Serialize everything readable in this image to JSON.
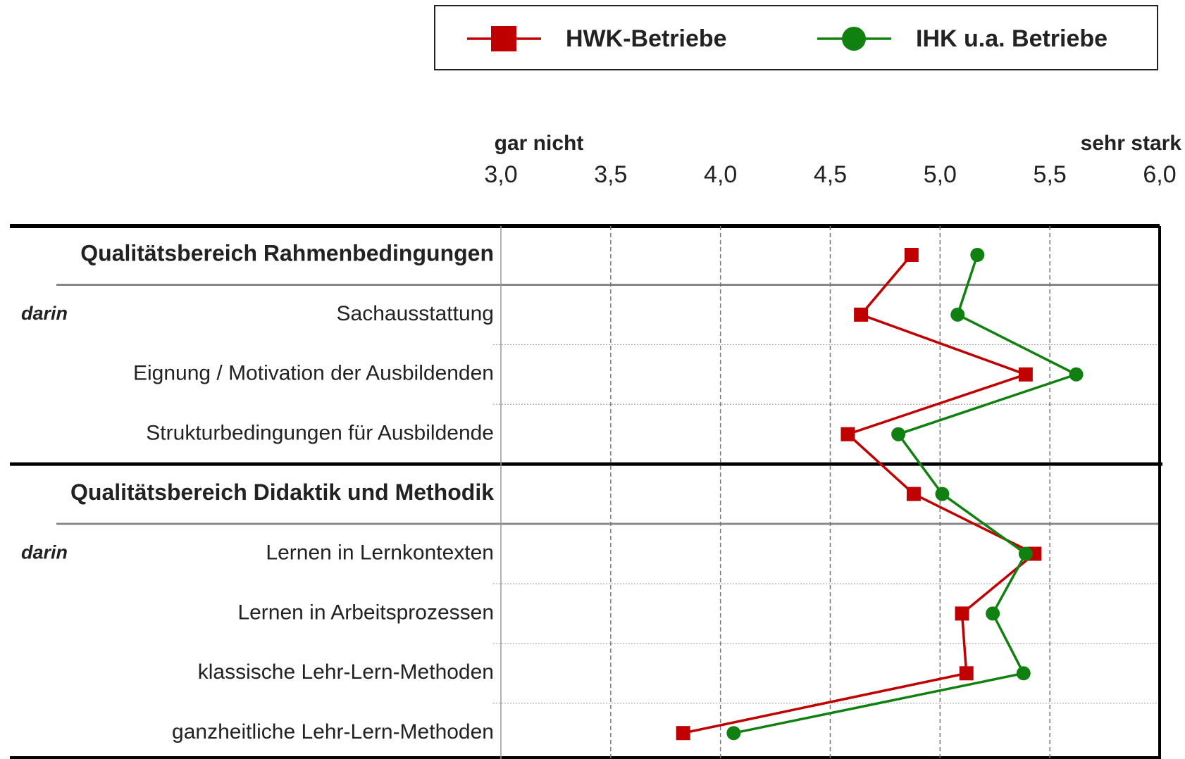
{
  "chart_data": {
    "type": "line",
    "orientation": "horizontal",
    "xlabel_left": "gar nicht",
    "xlabel_right": "sehr stark",
    "categories": [
      "Qualitätsbereich Rahmenbedingungen",
      "Sachausstattung",
      "Eignung / Motivation der Ausbildenden",
      "Strukturbedingungen für Ausbildende",
      "Qualitätsbereich Didaktik und Methodik",
      "Lernen in Lernkontexten",
      "Lernen in Arbeitsprozessen",
      "klassische Lehr-Lern-Methoden",
      "ganzheitliche Lehr-Lern-Methoden"
    ],
    "header_categories": [
      0,
      4
    ],
    "annotations": [
      {
        "text": "darin",
        "category": 1
      },
      {
        "text": "darin",
        "category": 5
      }
    ],
    "series": [
      {
        "name": "HWK-Betriebe",
        "color": "#c00000",
        "marker": "square",
        "values": [
          4.87,
          4.64,
          5.39,
          4.58,
          4.88,
          5.43,
          5.1,
          5.12,
          3.83
        ]
      },
      {
        "name": "IHK u.a. Betriebe",
        "color": "#108010",
        "marker": "circle",
        "values": [
          5.17,
          5.08,
          5.62,
          4.81,
          5.01,
          5.39,
          5.24,
          5.38,
          4.06
        ]
      }
    ],
    "xlim": [
      3,
      6
    ],
    "xticks": [
      {
        "value": 3,
        "label": "3,0"
      },
      {
        "value": 3.5,
        "label": "3,5"
      },
      {
        "value": 4,
        "label": "4,0"
      },
      {
        "value": 4.5,
        "label": "4,5"
      },
      {
        "value": 5,
        "label": "5,0"
      },
      {
        "value": 5.5,
        "label": "5,5"
      },
      {
        "value": 6,
        "label": "6,0"
      }
    ],
    "grid": true,
    "legend": "top"
  }
}
